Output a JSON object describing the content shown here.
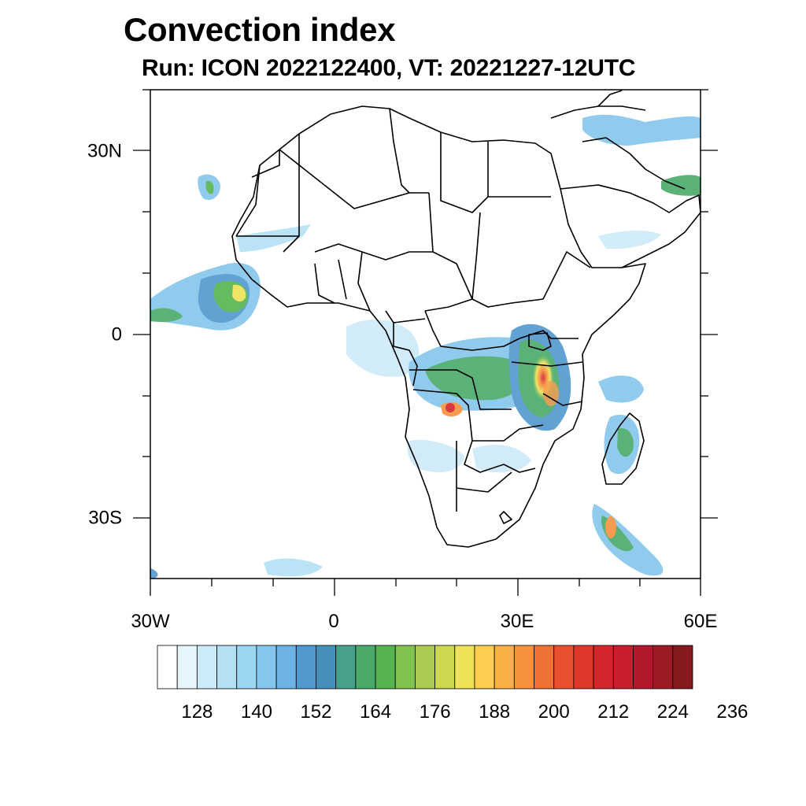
{
  "title": "Convection index",
  "subtitle": "Run: ICON 2022122400,  VT: 20221227-12UTC",
  "map": {
    "lon_range": [
      -30,
      60
    ],
    "lat_range": [
      -40,
      40
    ],
    "lat_labels": [
      {
        "lat": 30,
        "text": "30N"
      },
      {
        "lat": 0,
        "text": "0"
      },
      {
        "lat": -30,
        "text": "30S"
      }
    ],
    "lon_labels": [
      {
        "lon": -30,
        "text": "30W"
      },
      {
        "lon": 0,
        "text": "0"
      },
      {
        "lon": 30,
        "text": "30E"
      },
      {
        "lon": 60,
        "text": "60E"
      }
    ]
  },
  "colorbar": {
    "colors": [
      "#ffffff",
      "#e6f5fc",
      "#cdeaf8",
      "#b4e0f5",
      "#9dd6f3",
      "#85c6ec",
      "#6cb2e2",
      "#5199cf",
      "#4490b8",
      "#46a08a",
      "#4aaa6a",
      "#55b44f",
      "#82c250",
      "#aacc50",
      "#cdd752",
      "#eee256",
      "#fbce52",
      "#f9b047",
      "#f7923c",
      "#f17035",
      "#e9502f",
      "#df372c",
      "#d5242c",
      "#c71d2d",
      "#b2182b",
      "#9c1a23",
      "#85191d"
    ],
    "tick_labels": [
      "128",
      "140",
      "152",
      "164",
      "176",
      "188",
      "200",
      "212",
      "224",
      "236"
    ]
  }
}
